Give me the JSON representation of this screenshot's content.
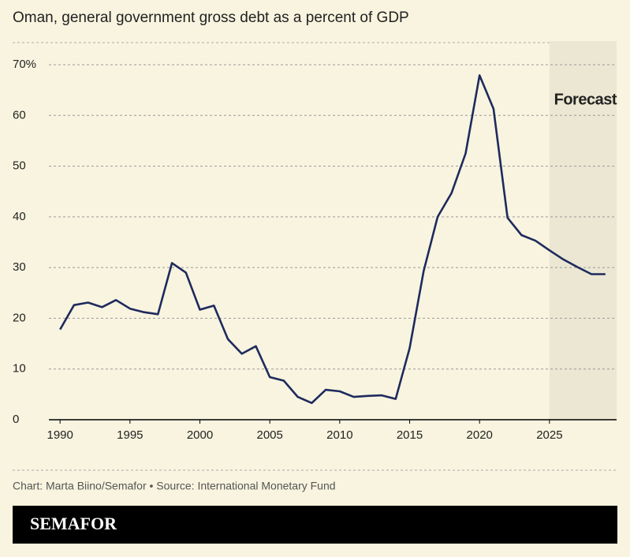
{
  "chart_data": {
    "type": "line",
    "title": "Oman, general government gross debt as a percent of GDP",
    "x": [
      1990,
      1991,
      1992,
      1993,
      1994,
      1995,
      1996,
      1997,
      1998,
      1999,
      2000,
      2001,
      2002,
      2003,
      2004,
      2005,
      2006,
      2007,
      2008,
      2009,
      2010,
      2011,
      2012,
      2013,
      2014,
      2015,
      2016,
      2017,
      2018,
      2019,
      2020,
      2021,
      2022,
      2023,
      2024,
      2025,
      2026,
      2027,
      2028,
      2029
    ],
    "values": [
      17.8,
      22.6,
      23.1,
      22.2,
      23.6,
      21.9,
      21.2,
      20.8,
      30.9,
      29.0,
      21.7,
      22.5,
      15.9,
      13.0,
      14.5,
      8.4,
      7.7,
      4.5,
      3.3,
      5.9,
      5.6,
      4.5,
      4.7,
      4.8,
      4.1,
      14.1,
      29.3,
      40.0,
      44.7,
      52.5,
      67.9,
      61.3,
      39.8,
      36.4,
      35.3,
      33.4,
      31.6,
      30.1,
      28.7,
      28.7
    ],
    "color": "#1f2a5e",
    "xlim": [
      1989.2,
      2029.8
    ],
    "xticks": [
      1990,
      1995,
      2000,
      2005,
      2010,
      2015,
      2020,
      2025
    ],
    "ylim": [
      0,
      70
    ],
    "yticks": [
      0,
      10,
      20,
      30,
      40,
      50,
      60,
      {
        "value": 70,
        "label": "70%"
      }
    ],
    "grid": true,
    "forecast_from": 2025,
    "forecast_label": "Forecast",
    "source": "Chart: Marta Biino/Semafor • Source: International Monetary Fund",
    "brand": "SEMAFOR"
  }
}
